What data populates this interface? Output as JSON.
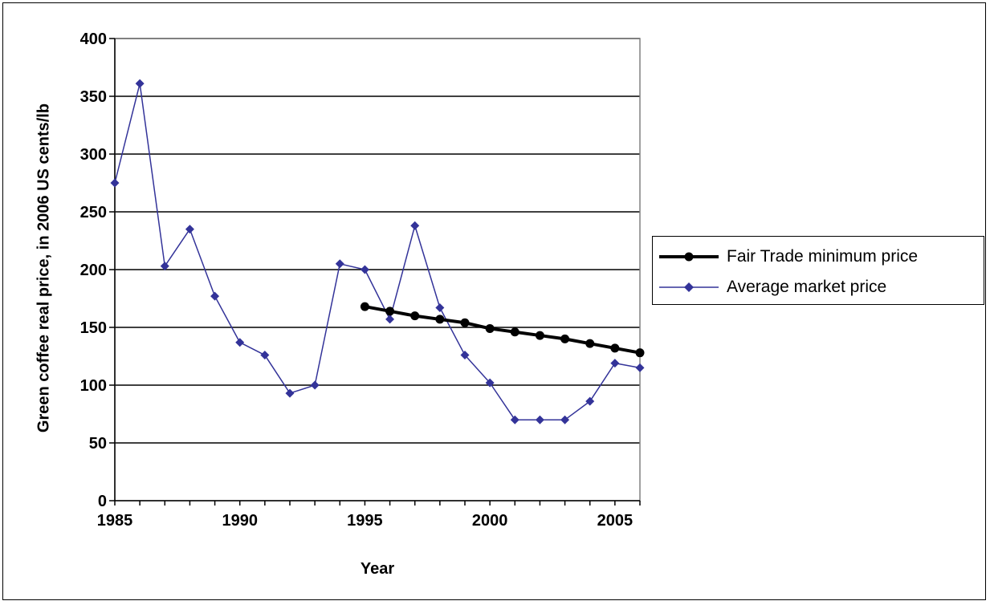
{
  "chart_data": {
    "type": "line",
    "title": "",
    "xlabel": "Year",
    "ylabel": "Green coffee real price, in 2006 US cents/lb",
    "xlim": [
      1985,
      2006
    ],
    "ylim": [
      0,
      400
    ],
    "x_ticks": [
      1985,
      1990,
      1995,
      2000,
      2005
    ],
    "y_ticks": [
      0,
      50,
      100,
      150,
      200,
      250,
      300,
      350,
      400
    ],
    "grid": "horizontal",
    "legend_position": "right",
    "series": [
      {
        "name": "Fair Trade minimum price",
        "color": "#000000",
        "marker": "circle",
        "x": [
          1995,
          1996,
          1997,
          1998,
          1999,
          2000,
          2001,
          2002,
          2003,
          2004,
          2005,
          2006
        ],
        "values": [
          168,
          164,
          160,
          157,
          154,
          149,
          146,
          143,
          140,
          136,
          132,
          128
        ]
      },
      {
        "name": "Average market price",
        "color": "#333399",
        "marker": "diamond",
        "x": [
          1985,
          1986,
          1987,
          1988,
          1989,
          1990,
          1991,
          1992,
          1993,
          1994,
          1995,
          1996,
          1997,
          1998,
          1999,
          2000,
          2001,
          2002,
          2003,
          2004,
          2005,
          2006
        ],
        "values": [
          275,
          361,
          203,
          235,
          177,
          137,
          126,
          93,
          100,
          205,
          200,
          157,
          238,
          167,
          126,
          102,
          70,
          70,
          70,
          86,
          119,
          115
        ]
      }
    ]
  }
}
